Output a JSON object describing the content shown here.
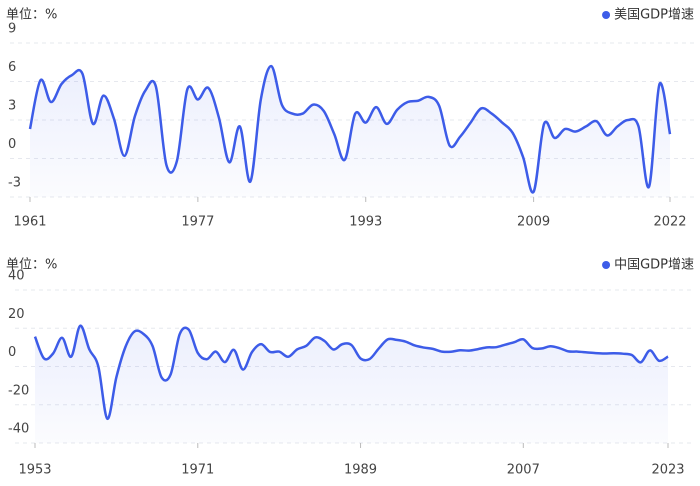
{
  "chart_data": [
    {
      "type": "line",
      "y_label": "单位：%",
      "x": [
        1961,
        1962,
        1963,
        1964,
        1965,
        1966,
        1967,
        1968,
        1969,
        1970,
        1971,
        1972,
        1973,
        1974,
        1975,
        1976,
        1977,
        1978,
        1979,
        1980,
        1981,
        1982,
        1983,
        1984,
        1985,
        1986,
        1987,
        1988,
        1989,
        1990,
        1991,
        1992,
        1993,
        1994,
        1995,
        1996,
        1997,
        1998,
        1999,
        2000,
        2001,
        2002,
        2003,
        2004,
        2005,
        2006,
        2007,
        2008,
        2009,
        2010,
        2011,
        2012,
        2013,
        2014,
        2015,
        2016,
        2017,
        2018,
        2019,
        2020,
        2021,
        2022
      ],
      "series": [
        {
          "name": "美国GDP增速",
          "color": "#3d5ce8",
          "values": [
            2.3,
            6.1,
            4.4,
            5.8,
            6.5,
            6.6,
            2.7,
            4.9,
            3.1,
            0.2,
            3.3,
            5.3,
            5.6,
            -0.5,
            -0.2,
            5.4,
            4.6,
            5.5,
            3.2,
            -0.3,
            2.5,
            -1.8,
            4.6,
            7.2,
            4.2,
            3.5,
            3.5,
            4.2,
            3.7,
            1.9,
            -0.1,
            3.5,
            2.8,
            4.0,
            2.7,
            3.8,
            4.4,
            4.5,
            4.8,
            4.1,
            1.0,
            1.7,
            2.8,
            3.9,
            3.5,
            2.8,
            2.0,
            0.1,
            -2.6,
            2.7,
            1.6,
            2.3,
            2.1,
            2.5,
            2.9,
            1.8,
            2.5,
            3.0,
            2.5,
            -2.2,
            5.8,
            1.9
          ]
        }
      ],
      "xlim": [
        1961,
        2022
      ],
      "xticks": [
        1961,
        1977,
        1993,
        2009,
        2022
      ],
      "ylim": [
        -3,
        9
      ],
      "yticks": [
        -3,
        0,
        3,
        6,
        9
      ],
      "grid": true
    },
    {
      "type": "line",
      "y_label": "单位：%",
      "x": [
        1953,
        1954,
        1955,
        1956,
        1957,
        1958,
        1959,
        1960,
        1961,
        1962,
        1963,
        1964,
        1965,
        1966,
        1967,
        1968,
        1969,
        1970,
        1971,
        1972,
        1973,
        1974,
        1975,
        1976,
        1977,
        1978,
        1979,
        1980,
        1981,
        1982,
        1983,
        1984,
        1985,
        1986,
        1987,
        1988,
        1989,
        1990,
        1991,
        1992,
        1993,
        1994,
        1995,
        1996,
        1997,
        1998,
        1999,
        2000,
        2001,
        2002,
        2003,
        2004,
        2005,
        2006,
        2007,
        2008,
        2009,
        2010,
        2011,
        2012,
        2013,
        2014,
        2015,
        2016,
        2017,
        2018,
        2019,
        2020,
        2021,
        2022,
        2023
      ],
      "series": [
        {
          "name": "中国GDP增速",
          "color": "#3d5ce8",
          "values": [
            15.6,
            4.2,
            6.8,
            15.0,
            5.1,
            21.3,
            9.0,
            0.0,
            -27.3,
            -5.6,
            10.2,
            18.3,
            17.0,
            10.7,
            -5.7,
            -4.1,
            16.9,
            19.3,
            7.1,
            3.8,
            7.8,
            2.3,
            8.7,
            -1.6,
            7.6,
            11.7,
            7.6,
            7.8,
            5.1,
            9.0,
            10.8,
            15.2,
            13.4,
            8.9,
            11.7,
            11.2,
            4.2,
            3.9,
            9.3,
            14.2,
            13.9,
            13.0,
            11.0,
            9.9,
            9.2,
            7.8,
            7.7,
            8.5,
            8.3,
            9.1,
            10.0,
            10.1,
            11.4,
            12.7,
            14.2,
            9.7,
            9.4,
            10.6,
            9.6,
            7.9,
            7.8,
            7.4,
            7.0,
            6.8,
            6.9,
            6.7,
            6.0,
            2.2,
            8.4,
            3.0,
            5.2
          ]
        }
      ],
      "xlim": [
        1953,
        2023
      ],
      "xticks": [
        1953,
        1971,
        1989,
        2007,
        2023
      ],
      "ylim": [
        -40,
        40
      ],
      "yticks": [
        -40,
        -20,
        0,
        20,
        40
      ],
      "grid": true
    }
  ]
}
